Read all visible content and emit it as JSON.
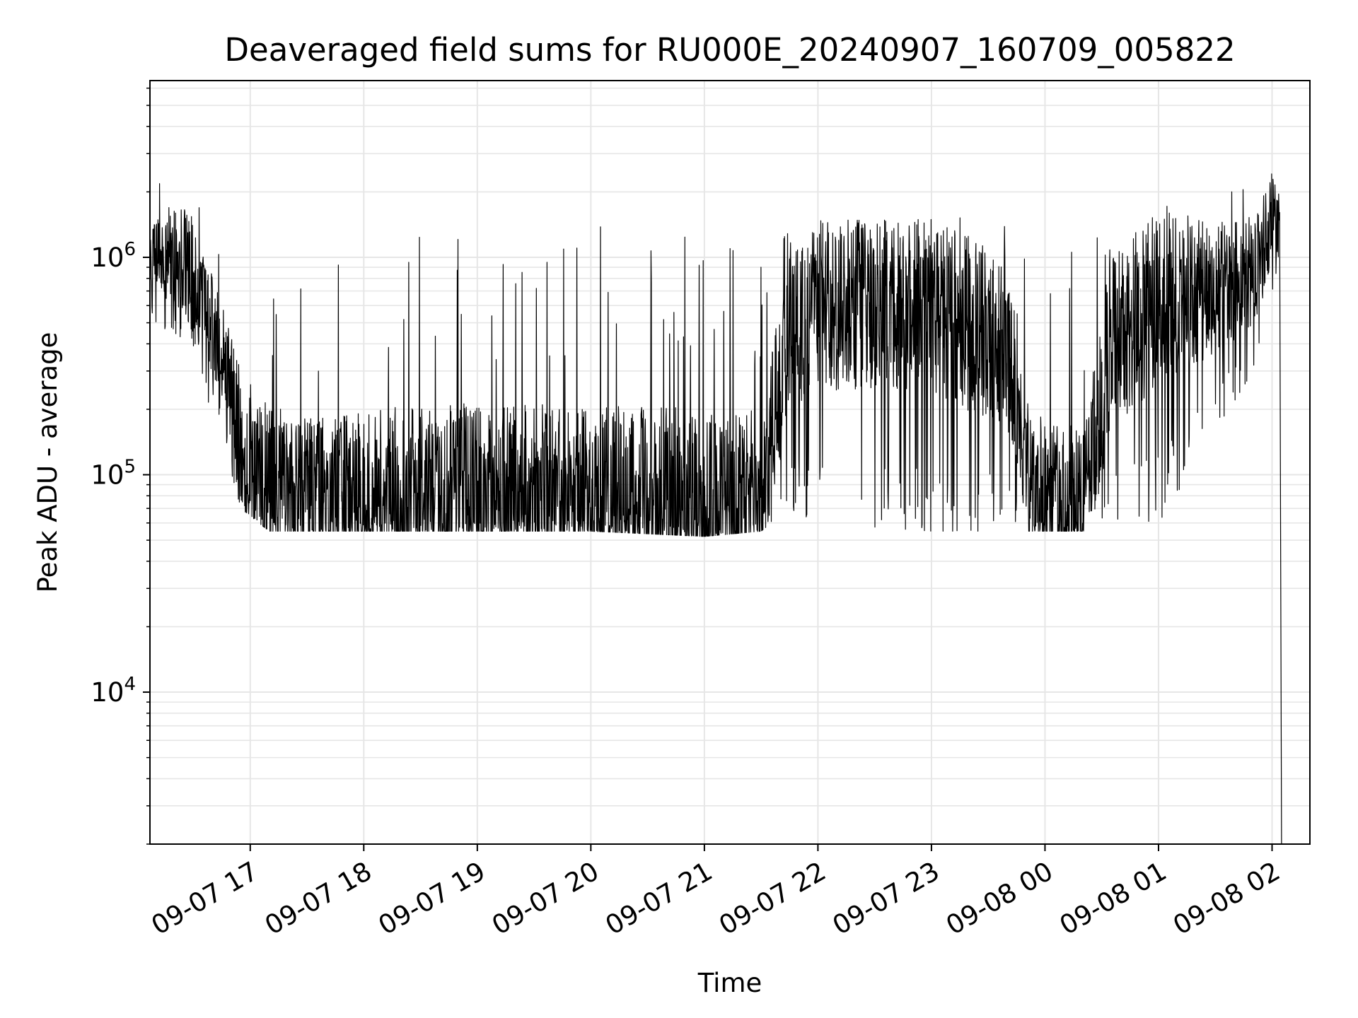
{
  "chart_data": {
    "type": "line",
    "title": "Deaveraged field sums for RU000E_20240907_160709_005822",
    "xlabel": "Time",
    "ylabel": "Peak ADU - average",
    "yscale": "log",
    "grid": true,
    "line_color": "#000000",
    "grid_color": "#e6e6e6",
    "xlim": [
      "2024-09-07 16:07",
      "2024-09-08 02:20"
    ],
    "ylim": [
      2000,
      6500000
    ],
    "x_ticks": [
      {
        "value": "2024-09-07 17:00",
        "label": "09-07 17"
      },
      {
        "value": "2024-09-07 18:00",
        "label": "09-07 18"
      },
      {
        "value": "2024-09-07 19:00",
        "label": "09-07 19"
      },
      {
        "value": "2024-09-07 20:00",
        "label": "09-07 20"
      },
      {
        "value": "2024-09-07 21:00",
        "label": "09-07 21"
      },
      {
        "value": "2024-09-07 22:00",
        "label": "09-07 22"
      },
      {
        "value": "2024-09-07 23:00",
        "label": "09-07 23"
      },
      {
        "value": "2024-09-08 00:00",
        "label": "09-08 00"
      },
      {
        "value": "2024-09-08 01:00",
        "label": "09-08 01"
      },
      {
        "value": "2024-09-08 02:00",
        "label": "09-08 02"
      }
    ],
    "y_ticks": [
      {
        "value": 10000,
        "base": "10",
        "exp": "4"
      },
      {
        "value": 100000,
        "base": "10",
        "exp": "5"
      },
      {
        "value": 1000000,
        "base": "10",
        "exp": "6"
      }
    ],
    "series": [
      {
        "envelope": [
          {
            "x": "2024-09-07 16:07",
            "floor": 500000,
            "typical": 1000000,
            "peak": 1900000
          },
          {
            "x": "2024-09-07 16:20",
            "floor": 450000,
            "typical": 1000000,
            "peak": 2800000
          },
          {
            "x": "2024-09-07 16:28",
            "floor": 400000,
            "typical": 900000,
            "peak": 4000000
          },
          {
            "x": "2024-09-07 16:35",
            "floor": 250000,
            "typical": 600000,
            "peak": 1800000
          },
          {
            "x": "2024-09-07 16:45",
            "floor": 150000,
            "typical": 350000,
            "peak": 1500000
          },
          {
            "x": "2024-09-07 16:55",
            "floor": 70000,
            "typical": 130000,
            "peak": 1500000
          },
          {
            "x": "2024-09-07 17:10",
            "floor": 55000,
            "typical": 95000,
            "peak": 900000
          },
          {
            "x": "2024-09-07 17:40",
            "floor": 55000,
            "typical": 85000,
            "peak": 900000
          },
          {
            "x": "2024-09-07 18:30",
            "floor": 55000,
            "typical": 85000,
            "peak": 1700000
          },
          {
            "x": "2024-09-07 20:00",
            "floor": 55000,
            "typical": 82000,
            "peak": 1600000
          },
          {
            "x": "2024-09-07 21:00",
            "floor": 52000,
            "typical": 78000,
            "peak": 1700000
          },
          {
            "x": "2024-09-07 21:30",
            "floor": 55000,
            "typical": 85000,
            "peak": 1200000
          },
          {
            "x": "2024-09-07 21:45",
            "floor": 70000,
            "typical": 450000,
            "peak": 1300000
          },
          {
            "x": "2024-09-07 22:00",
            "floor": 60000,
            "typical": 600000,
            "peak": 1600000
          },
          {
            "x": "2024-09-07 23:00",
            "floor": 55000,
            "typical": 600000,
            "peak": 1600000
          },
          {
            "x": "2024-09-07 23:40",
            "floor": 55000,
            "typical": 400000,
            "peak": 1500000
          },
          {
            "x": "2024-09-07 23:55",
            "floor": 55000,
            "typical": 80000,
            "peak": 1300000
          },
          {
            "x": "2024-09-08 00:20",
            "floor": 55000,
            "typical": 75000,
            "peak": 1000000
          },
          {
            "x": "2024-09-08 00:35",
            "floor": 60000,
            "typical": 400000,
            "peak": 1600000
          },
          {
            "x": "2024-09-08 01:00",
            "floor": 60000,
            "typical": 650000,
            "peak": 1700000
          },
          {
            "x": "2024-09-08 01:50",
            "floor": 300000,
            "typical": 800000,
            "peak": 2500000
          },
          {
            "x": "2024-09-08 02:00",
            "floor": 700000,
            "typical": 1500000,
            "peak": 4300000
          },
          {
            "x": "2024-09-08 02:04",
            "floor": 900000,
            "typical": 1400000,
            "peak": 2800000
          }
        ],
        "final_point": {
          "x": "2024-09-08 02:05",
          "y": 2000
        }
      }
    ]
  }
}
